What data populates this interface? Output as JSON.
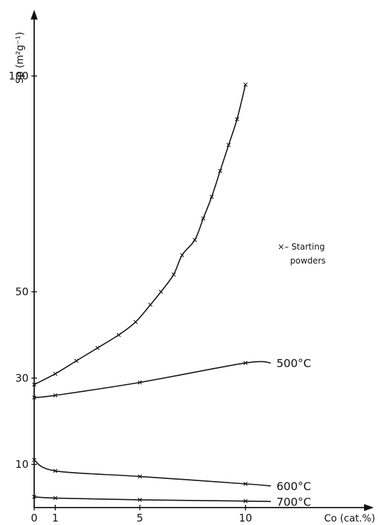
{
  "chart_data": {
    "type": "line",
    "title": "",
    "xlabel": "Co (cat.%)",
    "ylabel": "Sp (m²g⁻¹)",
    "xlim": [
      0,
      11.8
    ],
    "ylim": [
      0,
      117
    ],
    "x_ticks": [
      {
        "value": 0,
        "label": "0"
      },
      {
        "value": 1,
        "label": "1"
      },
      {
        "value": 5,
        "label": "5"
      },
      {
        "value": 10,
        "label": "10"
      }
    ],
    "y_ticks": [
      {
        "value": 10,
        "label": "10"
      },
      {
        "value": 30,
        "label": "30"
      },
      {
        "value": 50,
        "label": "50"
      },
      {
        "value": 100,
        "label": "100"
      }
    ],
    "legend": {
      "marker": "×",
      "lines": [
        "– Starting",
        "powders"
      ],
      "placement": "right"
    },
    "series": [
      {
        "name": "Starting powders",
        "marker": "x",
        "label": "",
        "x": [
          0,
          1,
          2,
          3,
          4,
          4.8,
          5.5,
          6,
          6.6,
          7,
          7.6,
          8,
          8.4,
          8.8,
          9.2,
          9.6,
          10
        ],
        "y": [
          28.5,
          31,
          34,
          37,
          40,
          43,
          47,
          50,
          54,
          58.5,
          62,
          67,
          72,
          78,
          84,
          90,
          98
        ]
      },
      {
        "name": "500°C",
        "marker": "x",
        "label": "500°C",
        "x": [
          0,
          1,
          5,
          10,
          11.2
        ],
        "y": [
          25.5,
          26,
          29,
          33.5,
          33.5
        ]
      },
      {
        "name": "600°C",
        "marker": "x",
        "label": "600°C",
        "x": [
          0,
          1,
          5,
          10,
          11.2
        ],
        "y": [
          11,
          8.5,
          7.2,
          5.5,
          5.0
        ]
      },
      {
        "name": "700°C",
        "marker": "x",
        "label": "700°C",
        "x": [
          0,
          1,
          5,
          10,
          11.2
        ],
        "y": [
          2.5,
          2.2,
          1.8,
          1.5,
          1.4
        ]
      }
    ]
  }
}
